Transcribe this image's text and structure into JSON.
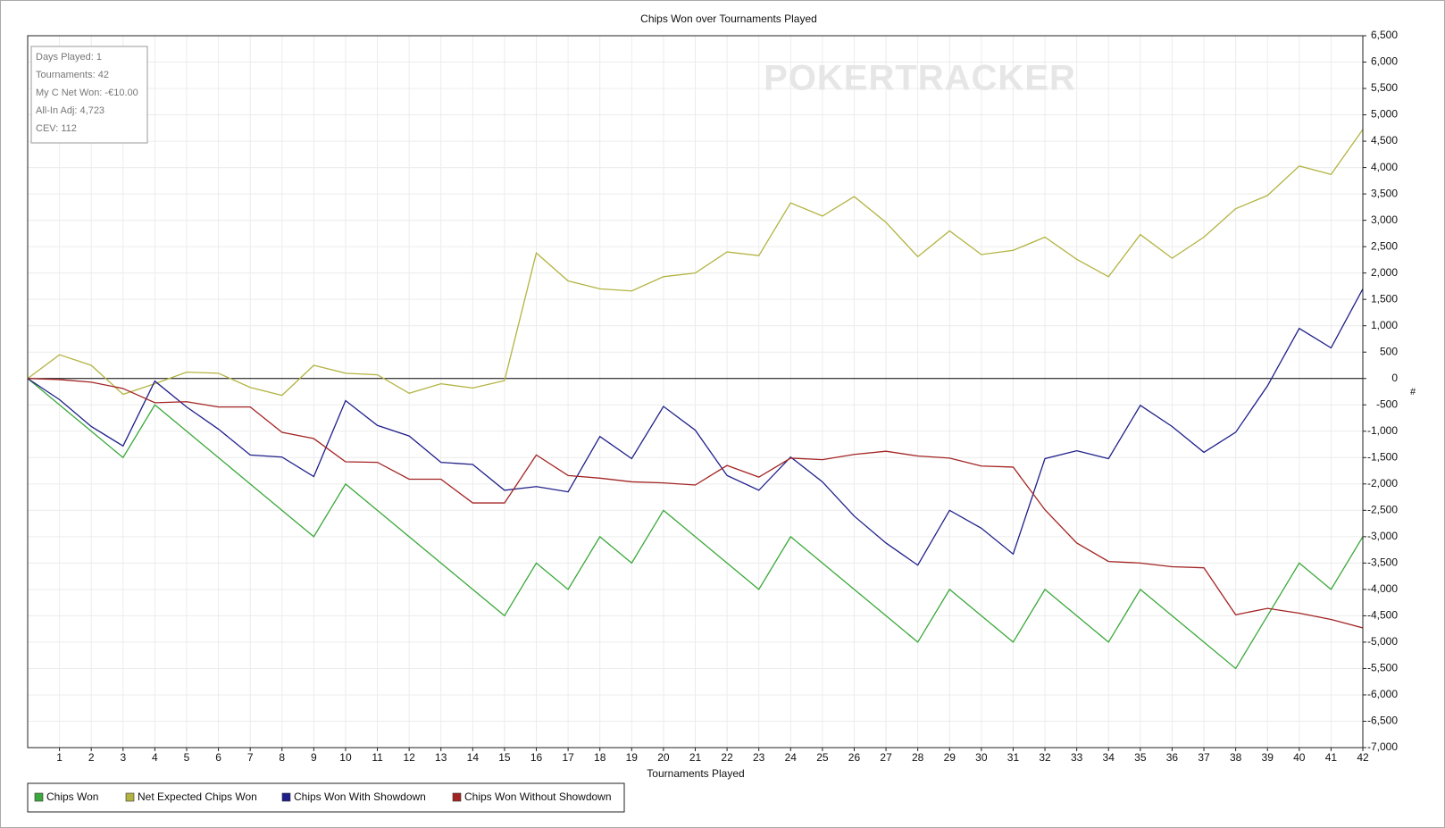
{
  "chart_data": {
    "type": "line",
    "title": "Chips Won over Tournaments Played",
    "x_label": "Tournaments Played",
    "y_label": "#",
    "watermark": "POKERTRACKER",
    "annotations": [
      "Days Played: 1",
      "Tournaments: 42",
      "My C Net Won: -€10.00",
      "All-In Adj: 4,723",
      "CEV: 112"
    ],
    "x": [
      0,
      1,
      2,
      3,
      4,
      5,
      6,
      7,
      8,
      9,
      10,
      11,
      12,
      13,
      14,
      15,
      16,
      17,
      18,
      19,
      20,
      21,
      22,
      23,
      24,
      25,
      26,
      27,
      28,
      29,
      30,
      31,
      32,
      33,
      34,
      35,
      36,
      37,
      38,
      39,
      40,
      41,
      42
    ],
    "xlim": [
      0,
      42
    ],
    "xticks": [
      1,
      2,
      3,
      4,
      5,
      6,
      7,
      8,
      9,
      10,
      11,
      12,
      13,
      14,
      15,
      16,
      17,
      18,
      19,
      20,
      21,
      22,
      23,
      24,
      25,
      26,
      27,
      28,
      29,
      30,
      31,
      32,
      33,
      34,
      35,
      36,
      37,
      38,
      39,
      40,
      41,
      42
    ],
    "ylim": [
      -7000,
      6500
    ],
    "yticks": [
      {
        "value": -7000,
        "label": "-7,000"
      },
      {
        "value": -6500,
        "label": "-6,500"
      },
      {
        "value": -6000,
        "label": "-6,000"
      },
      {
        "value": -5500,
        "label": "-5,500"
      },
      {
        "value": -5000,
        "label": "-5,000"
      },
      {
        "value": -4500,
        "label": "-4,500"
      },
      {
        "value": -4000,
        "label": "-4,000"
      },
      {
        "value": -3500,
        "label": "-3,500"
      },
      {
        "value": -3000,
        "label": "-3,000"
      },
      {
        "value": -2500,
        "label": "-2,500"
      },
      {
        "value": -2000,
        "label": "-2,000"
      },
      {
        "value": -1500,
        "label": "-1,500"
      },
      {
        "value": -1000,
        "label": "-1,000"
      },
      -500,
      0,
      500,
      {
        "value": 1000,
        "label": "1,000"
      },
      {
        "value": 1500,
        "label": "1,500"
      },
      {
        "value": 2000,
        "label": "2,000"
      },
      {
        "value": 2500,
        "label": "2,500"
      },
      {
        "value": 3000,
        "label": "3,000"
      },
      {
        "value": 3500,
        "label": "3,500"
      },
      {
        "value": 4000,
        "label": "4,000"
      },
      {
        "value": 4500,
        "label": "4,500"
      },
      {
        "value": 5000,
        "label": "5,000"
      },
      {
        "value": 5500,
        "label": "5,500"
      },
      {
        "value": 6000,
        "label": "6,000"
      },
      {
        "value": 6500,
        "label": "6,500"
      }
    ],
    "grid": true,
    "legend": "bottom-left",
    "series": [
      {
        "name": "Chips Won",
        "color": "#3aa83a",
        "values": [
          0,
          -500,
          -1000,
          -1500,
          -500,
          -1000,
          -1500,
          -2000,
          -2500,
          -3000,
          -2000,
          -2500,
          -3000,
          -3500,
          -4000,
          -4500,
          -3500,
          -4000,
          -3000,
          -3500,
          -2500,
          -3000,
          -3500,
          -4000,
          -3000,
          -3500,
          -4000,
          -4500,
          -5000,
          -4000,
          -4500,
          -5000,
          -4000,
          -4500,
          -5000,
          -4000,
          -4500,
          -5000,
          -5500,
          -4500,
          -3500,
          -4000,
          -3000
        ]
      },
      {
        "name": "Net Expected Chips Won",
        "color": "#b3b342",
        "values": [
          0,
          450,
          250,
          -300,
          -100,
          120,
          100,
          -170,
          -320,
          250,
          100,
          70,
          -280,
          -100,
          -180,
          -40,
          2380,
          1850,
          1700,
          1660,
          1930,
          2000,
          2400,
          2330,
          3330,
          3080,
          3450,
          2960,
          2310,
          2800,
          2350,
          2430,
          2680,
          2260,
          1930,
          2730,
          2280,
          2680,
          3220,
          3470,
          4030,
          3870,
          4723
        ]
      },
      {
        "name": "Chips Won With Showdown",
        "color": "#1f1f8a",
        "values": [
          0,
          -400,
          -910,
          -1280,
          -50,
          -540,
          -960,
          -1450,
          -1490,
          -1860,
          -420,
          -890,
          -1090,
          -1590,
          -1630,
          -2120,
          -2050,
          -2150,
          -1100,
          -1520,
          -530,
          -980,
          -1840,
          -2120,
          -1490,
          -1960,
          -2610,
          -3120,
          -3540,
          -2500,
          -2840,
          -3330,
          -1520,
          -1370,
          -1520,
          -510,
          -910,
          -1400,
          -1020,
          -140,
          950,
          580,
          1700
        ]
      },
      {
        "name": "Chips Won Without Showdown",
        "color": "#a32323",
        "values": [
          0,
          -20,
          -70,
          -190,
          -460,
          -440,
          -540,
          -540,
          -1020,
          -1140,
          -1580,
          -1590,
          -1910,
          -1910,
          -2360,
          -2360,
          -1450,
          -1840,
          -1890,
          -1960,
          -1980,
          -2020,
          -1650,
          -1870,
          -1510,
          -1540,
          -1440,
          -1380,
          -1470,
          -1510,
          -1660,
          -1680,
          -2490,
          -3120,
          -3470,
          -3500,
          -3570,
          -3590,
          -4480,
          -4360,
          -4450,
          -4570,
          -4730
        ]
      }
    ]
  }
}
